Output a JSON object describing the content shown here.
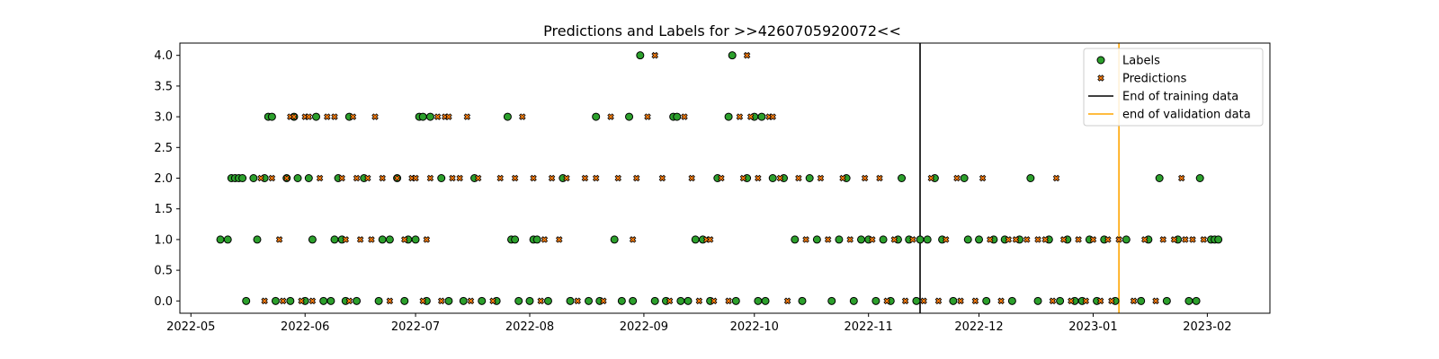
{
  "chart_data": {
    "type": "scatter",
    "title": "Predictions and Labels for >>4260705920072<<",
    "xlabel": "",
    "ylabel": "",
    "xlim": [
      "2022-04-28",
      "2023-02-18"
    ],
    "ylim": [
      -0.2,
      4.2
    ],
    "x_ticks": [
      "2022-05",
      "2022-06",
      "2022-07",
      "2022-08",
      "2022-09",
      "2022-10",
      "2022-11",
      "2022-12",
      "2023-01",
      "2023-02"
    ],
    "y_ticks": [
      "0.0",
      "0.5",
      "1.0",
      "1.5",
      "2.0",
      "2.5",
      "3.0",
      "3.5",
      "4.0"
    ],
    "grid": false,
    "legend_position": "top-right",
    "colors": {
      "labels": "#2ca02c",
      "predictions": "#ff7f0e",
      "training_line": "#000000",
      "validation_line": "#ffa500"
    },
    "series": [
      {
        "name": "Labels",
        "marker": "circle",
        "points": [
          [
            "2022-05-09",
            1
          ],
          [
            "2022-05-11",
            1
          ],
          [
            "2022-05-12",
            2
          ],
          [
            "2022-05-13",
            2
          ],
          [
            "2022-05-14",
            2
          ],
          [
            "2022-05-15",
            2
          ],
          [
            "2022-05-16",
            0
          ],
          [
            "2022-05-18",
            2
          ],
          [
            "2022-05-19",
            1
          ],
          [
            "2022-05-21",
            2
          ],
          [
            "2022-05-22",
            3
          ],
          [
            "2022-05-23",
            3
          ],
          [
            "2022-05-24",
            0
          ],
          [
            "2022-05-27",
            2
          ],
          [
            "2022-05-28",
            0
          ],
          [
            "2022-05-29",
            3
          ],
          [
            "2022-05-30",
            2
          ],
          [
            "2022-06-01",
            0
          ],
          [
            "2022-06-02",
            2
          ],
          [
            "2022-06-03",
            1
          ],
          [
            "2022-06-04",
            3
          ],
          [
            "2022-06-06",
            0
          ],
          [
            "2022-06-08",
            0
          ],
          [
            "2022-06-09",
            1
          ],
          [
            "2022-06-10",
            2
          ],
          [
            "2022-06-11",
            1
          ],
          [
            "2022-06-12",
            0
          ],
          [
            "2022-06-13",
            3
          ],
          [
            "2022-06-15",
            0
          ],
          [
            "2022-06-17",
            2
          ],
          [
            "2022-06-21",
            0
          ],
          [
            "2022-06-22",
            1
          ],
          [
            "2022-06-24",
            1
          ],
          [
            "2022-06-26",
            2
          ],
          [
            "2022-06-28",
            0
          ],
          [
            "2022-06-29",
            1
          ],
          [
            "2022-07-01",
            1
          ],
          [
            "2022-07-02",
            3
          ],
          [
            "2022-07-03",
            3
          ],
          [
            "2022-07-04",
            0
          ],
          [
            "2022-07-05",
            3
          ],
          [
            "2022-07-08",
            2
          ],
          [
            "2022-07-10",
            0
          ],
          [
            "2022-07-14",
            0
          ],
          [
            "2022-07-17",
            2
          ],
          [
            "2022-07-19",
            0
          ],
          [
            "2022-07-23",
            0
          ],
          [
            "2022-07-26",
            3
          ],
          [
            "2022-07-27",
            1
          ],
          [
            "2022-07-28",
            1
          ],
          [
            "2022-07-29",
            0
          ],
          [
            "2022-08-01",
            0
          ],
          [
            "2022-08-02",
            1
          ],
          [
            "2022-08-03",
            1
          ],
          [
            "2022-08-06",
            0
          ],
          [
            "2022-08-10",
            2
          ],
          [
            "2022-08-12",
            0
          ],
          [
            "2022-08-17",
            0
          ],
          [
            "2022-08-19",
            3
          ],
          [
            "2022-08-20",
            0
          ],
          [
            "2022-08-24",
            1
          ],
          [
            "2022-08-26",
            0
          ],
          [
            "2022-08-28",
            3
          ],
          [
            "2022-08-29",
            0
          ],
          [
            "2022-08-31",
            4
          ],
          [
            "2022-09-04",
            0
          ],
          [
            "2022-09-07",
            0
          ],
          [
            "2022-09-09",
            3
          ],
          [
            "2022-09-10",
            3
          ],
          [
            "2022-09-11",
            0
          ],
          [
            "2022-09-13",
            0
          ],
          [
            "2022-09-15",
            1
          ],
          [
            "2022-09-17",
            1
          ],
          [
            "2022-09-19",
            0
          ],
          [
            "2022-09-21",
            2
          ],
          [
            "2022-09-24",
            3
          ],
          [
            "2022-09-25",
            4
          ],
          [
            "2022-09-26",
            0
          ],
          [
            "2022-09-29",
            2
          ],
          [
            "2022-10-01",
            3
          ],
          [
            "2022-10-02",
            0
          ],
          [
            "2022-10-03",
            3
          ],
          [
            "2022-10-04",
            0
          ],
          [
            "2022-10-06",
            2
          ],
          [
            "2022-10-09",
            2
          ],
          [
            "2022-10-12",
            1
          ],
          [
            "2022-10-14",
            0
          ],
          [
            "2022-10-16",
            2
          ],
          [
            "2022-10-18",
            1
          ],
          [
            "2022-10-22",
            0
          ],
          [
            "2022-10-24",
            1
          ],
          [
            "2022-10-26",
            2
          ],
          [
            "2022-10-28",
            0
          ],
          [
            "2022-10-30",
            1
          ],
          [
            "2022-11-01",
            1
          ],
          [
            "2022-11-03",
            0
          ],
          [
            "2022-11-05",
            1
          ],
          [
            "2022-11-07",
            0
          ],
          [
            "2022-11-09",
            1
          ],
          [
            "2022-11-10",
            2
          ],
          [
            "2022-11-12",
            1
          ],
          [
            "2022-11-14",
            0
          ],
          [
            "2022-11-15",
            1
          ],
          [
            "2022-11-17",
            1
          ],
          [
            "2022-11-19",
            2
          ],
          [
            "2022-11-21",
            1
          ],
          [
            "2022-11-24",
            0
          ],
          [
            "2022-11-27",
            2
          ],
          [
            "2022-11-28",
            1
          ],
          [
            "2022-12-01",
            1
          ],
          [
            "2022-12-03",
            0
          ],
          [
            "2022-12-05",
            1
          ],
          [
            "2022-12-08",
            1
          ],
          [
            "2022-12-10",
            0
          ],
          [
            "2022-12-12",
            1
          ],
          [
            "2022-12-15",
            2
          ],
          [
            "2022-12-17",
            0
          ],
          [
            "2022-12-20",
            1
          ],
          [
            "2022-12-23",
            0
          ],
          [
            "2022-12-25",
            1
          ],
          [
            "2022-12-27",
            0
          ],
          [
            "2022-12-29",
            0
          ],
          [
            "2022-12-31",
            1
          ],
          [
            "2023-01-02",
            0
          ],
          [
            "2023-01-04",
            1
          ],
          [
            "2023-01-07",
            0
          ],
          [
            "2023-01-10",
            1
          ],
          [
            "2023-01-14",
            0
          ],
          [
            "2023-01-16",
            1
          ],
          [
            "2023-01-19",
            2
          ],
          [
            "2023-01-21",
            0
          ],
          [
            "2023-01-24",
            1
          ],
          [
            "2023-01-27",
            0
          ],
          [
            "2023-01-29",
            0
          ],
          [
            "2023-01-30",
            2
          ],
          [
            "2023-02-02",
            1
          ],
          [
            "2023-02-03",
            1
          ],
          [
            "2023-02-04",
            1
          ]
        ]
      },
      {
        "name": "Predictions",
        "marker": "x",
        "points": [
          [
            "2022-05-20",
            2
          ],
          [
            "2022-05-21",
            0
          ],
          [
            "2022-05-23",
            2
          ],
          [
            "2022-05-25",
            1
          ],
          [
            "2022-05-26",
            0
          ],
          [
            "2022-05-27",
            2
          ],
          [
            "2022-05-28",
            3
          ],
          [
            "2022-05-29",
            3
          ],
          [
            "2022-05-31",
            0
          ],
          [
            "2022-06-01",
            3
          ],
          [
            "2022-06-02",
            3
          ],
          [
            "2022-06-03",
            0
          ],
          [
            "2022-06-05",
            2
          ],
          [
            "2022-06-07",
            3
          ],
          [
            "2022-06-09",
            3
          ],
          [
            "2022-06-11",
            2
          ],
          [
            "2022-06-12",
            1
          ],
          [
            "2022-06-13",
            0
          ],
          [
            "2022-06-14",
            3
          ],
          [
            "2022-06-15",
            2
          ],
          [
            "2022-06-16",
            1
          ],
          [
            "2022-06-18",
            2
          ],
          [
            "2022-06-19",
            1
          ],
          [
            "2022-06-20",
            3
          ],
          [
            "2022-06-22",
            2
          ],
          [
            "2022-06-24",
            0
          ],
          [
            "2022-06-26",
            2
          ],
          [
            "2022-06-28",
            1
          ],
          [
            "2022-06-30",
            2
          ],
          [
            "2022-07-01",
            2
          ],
          [
            "2022-07-03",
            0
          ],
          [
            "2022-07-04",
            1
          ],
          [
            "2022-07-05",
            2
          ],
          [
            "2022-07-07",
            3
          ],
          [
            "2022-07-08",
            0
          ],
          [
            "2022-07-09",
            3
          ],
          [
            "2022-07-10",
            3
          ],
          [
            "2022-07-11",
            2
          ],
          [
            "2022-07-13",
            2
          ],
          [
            "2022-07-15",
            3
          ],
          [
            "2022-07-16",
            0
          ],
          [
            "2022-07-18",
            2
          ],
          [
            "2022-07-22",
            0
          ],
          [
            "2022-07-24",
            2
          ],
          [
            "2022-07-28",
            2
          ],
          [
            "2022-07-30",
            3
          ],
          [
            "2022-08-02",
            2
          ],
          [
            "2022-08-04",
            0
          ],
          [
            "2022-08-05",
            1
          ],
          [
            "2022-08-07",
            2
          ],
          [
            "2022-08-09",
            1
          ],
          [
            "2022-08-11",
            2
          ],
          [
            "2022-08-14",
            0
          ],
          [
            "2022-08-16",
            2
          ],
          [
            "2022-08-19",
            2
          ],
          [
            "2022-08-21",
            0
          ],
          [
            "2022-08-23",
            3
          ],
          [
            "2022-08-25",
            2
          ],
          [
            "2022-08-29",
            1
          ],
          [
            "2022-08-30",
            2
          ],
          [
            "2022-09-02",
            3
          ],
          [
            "2022-09-04",
            4
          ],
          [
            "2022-09-06",
            2
          ],
          [
            "2022-09-08",
            0
          ],
          [
            "2022-09-12",
            3
          ],
          [
            "2022-09-14",
            2
          ],
          [
            "2022-09-16",
            0
          ],
          [
            "2022-09-18",
            1
          ],
          [
            "2022-09-19",
            1
          ],
          [
            "2022-09-20",
            0
          ],
          [
            "2022-09-22",
            2
          ],
          [
            "2022-09-24",
            0
          ],
          [
            "2022-09-27",
            3
          ],
          [
            "2022-09-28",
            2
          ],
          [
            "2022-09-29",
            4
          ],
          [
            "2022-09-30",
            3
          ],
          [
            "2022-10-02",
            2
          ],
          [
            "2022-10-05",
            3
          ],
          [
            "2022-10-06",
            3
          ],
          [
            "2022-10-08",
            2
          ],
          [
            "2022-10-10",
            0
          ],
          [
            "2022-10-13",
            2
          ],
          [
            "2022-10-15",
            1
          ],
          [
            "2022-10-19",
            2
          ],
          [
            "2022-10-21",
            1
          ],
          [
            "2022-10-25",
            2
          ],
          [
            "2022-10-27",
            1
          ],
          [
            "2022-10-31",
            2
          ],
          [
            "2022-11-02",
            1
          ],
          [
            "2022-11-04",
            2
          ],
          [
            "2022-11-06",
            0
          ],
          [
            "2022-11-08",
            1
          ],
          [
            "2022-11-11",
            0
          ],
          [
            "2022-11-13",
            1
          ],
          [
            "2022-11-16",
            0
          ],
          [
            "2022-11-18",
            2
          ],
          [
            "2022-11-20",
            0
          ],
          [
            "2022-11-22",
            1
          ],
          [
            "2022-11-25",
            2
          ],
          [
            "2022-11-26",
            0
          ],
          [
            "2022-11-30",
            0
          ],
          [
            "2022-12-02",
            2
          ],
          [
            "2022-12-04",
            1
          ],
          [
            "2022-12-07",
            0
          ],
          [
            "2022-12-09",
            1
          ],
          [
            "2022-12-11",
            1
          ],
          [
            "2022-12-14",
            1
          ],
          [
            "2022-12-17",
            1
          ],
          [
            "2022-12-19",
            1
          ],
          [
            "2022-12-21",
            0
          ],
          [
            "2022-12-22",
            2
          ],
          [
            "2022-12-24",
            1
          ],
          [
            "2022-12-26",
            0
          ],
          [
            "2022-12-28",
            1
          ],
          [
            "2022-12-30",
            0
          ],
          [
            "2023-01-01",
            1
          ],
          [
            "2023-01-03",
            0
          ],
          [
            "2023-01-05",
            1
          ],
          [
            "2023-01-06",
            0
          ],
          [
            "2023-01-08",
            1
          ],
          [
            "2023-01-12",
            0
          ],
          [
            "2023-01-15",
            1
          ],
          [
            "2023-01-18",
            0
          ],
          [
            "2023-01-20",
            1
          ],
          [
            "2023-01-23",
            1
          ],
          [
            "2023-01-25",
            2
          ],
          [
            "2023-01-26",
            1
          ],
          [
            "2023-01-28",
            1
          ],
          [
            "2023-01-31",
            1
          ]
        ]
      }
    ],
    "vlines": [
      {
        "name": "End of training data",
        "x": "2022-11-15",
        "color": "#000000"
      },
      {
        "name": "end of validation data",
        "x": "2023-01-08",
        "color": "#ffa500"
      }
    ],
    "legend": [
      "Labels",
      "Predictions",
      "End of training data",
      "end of validation data"
    ]
  }
}
